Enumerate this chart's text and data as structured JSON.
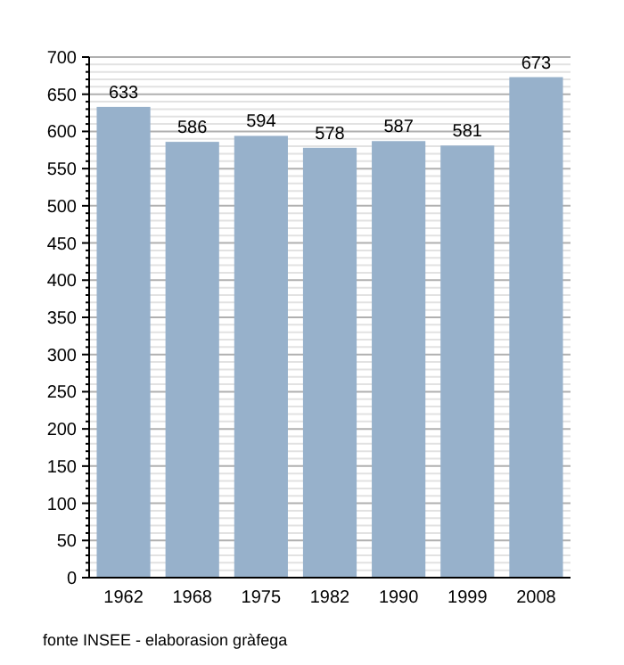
{
  "chart_data": {
    "type": "bar",
    "categories": [
      "1962",
      "1968",
      "1975",
      "1982",
      "1990",
      "1999",
      "2008"
    ],
    "values": [
      633,
      586,
      594,
      578,
      587,
      581,
      673
    ],
    "color": "#97b1cb",
    "data_labels": true,
    "grid": "y",
    "ylim": [
      0,
      700
    ],
    "yticks": [
      0,
      {
        "value": 10,
        "label": null
      },
      {
        "value": 20,
        "label": null
      },
      {
        "value": 30,
        "label": null
      },
      {
        "value": 40,
        "label": null
      },
      50,
      {
        "value": 60,
        "label": null
      },
      {
        "value": 70,
        "label": null
      },
      {
        "value": 80,
        "label": null
      },
      {
        "value": 90,
        "label": null
      },
      100,
      {
        "value": 110,
        "label": null
      },
      {
        "value": 120,
        "label": null
      },
      {
        "value": 130,
        "label": null
      },
      {
        "value": 140,
        "label": null
      },
      150,
      {
        "value": 160,
        "label": null
      },
      {
        "value": 170,
        "label": null
      },
      {
        "value": 180,
        "label": null
      },
      {
        "value": 190,
        "label": null
      },
      200,
      {
        "value": 210,
        "label": null
      },
      {
        "value": 220,
        "label": null
      },
      {
        "value": 230,
        "label": null
      },
      {
        "value": 240,
        "label": null
      },
      250,
      {
        "value": 260,
        "label": null
      },
      {
        "value": 270,
        "label": null
      },
      {
        "value": 280,
        "label": null
      },
      {
        "value": 290,
        "label": null
      },
      300,
      {
        "value": 310,
        "label": null
      },
      {
        "value": 320,
        "label": null
      },
      {
        "value": 330,
        "label": null
      },
      {
        "value": 340,
        "label": null
      },
      350,
      {
        "value": 360,
        "label": null
      },
      {
        "value": 370,
        "label": null
      },
      {
        "value": 380,
        "label": null
      },
      {
        "value": 390,
        "label": null
      },
      400,
      {
        "value": 410,
        "label": null
      },
      {
        "value": 420,
        "label": null
      },
      {
        "value": 430,
        "label": null
      },
      {
        "value": 440,
        "label": null
      },
      450,
      {
        "value": 460,
        "label": null
      },
      {
        "value": 470,
        "label": null
      },
      {
        "value": 480,
        "label": null
      },
      {
        "value": 490,
        "label": null
      },
      500,
      {
        "value": 510,
        "label": null
      },
      {
        "value": 520,
        "label": null
      },
      {
        "value": 530,
        "label": null
      },
      {
        "value": 540,
        "label": null
      },
      550,
      {
        "value": 560,
        "label": null
      },
      {
        "value": 570,
        "label": null
      },
      {
        "value": 580,
        "label": null
      },
      {
        "value": 590,
        "label": null
      },
      600,
      {
        "value": 610,
        "label": null
      },
      {
        "value": 620,
        "label": null
      },
      {
        "value": 630,
        "label": null
      },
      {
        "value": 640,
        "label": null
      },
      650,
      {
        "value": 660,
        "label": null
      },
      {
        "value": 670,
        "label": null
      },
      {
        "value": 680,
        "label": null
      },
      {
        "value": 690,
        "label": null
      },
      700
    ],
    "annotations": [
      "fonte INSEE - elaborasion gràfega"
    ]
  }
}
